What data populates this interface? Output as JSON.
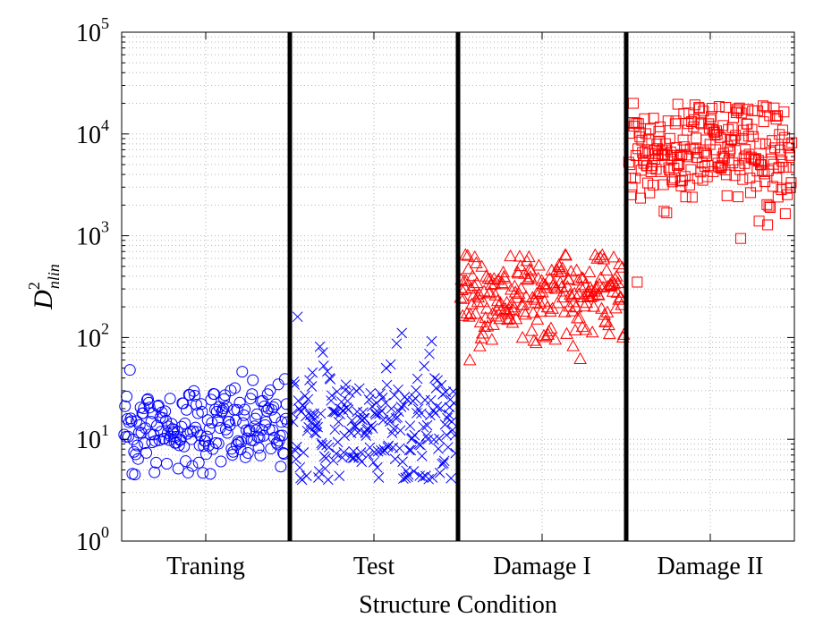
{
  "chart_data": {
    "type": "scatter",
    "title": "",
    "xlabel": "Structure Condition",
    "ylabel": "D²nlin",
    "ylabel_main": "D",
    "ylabel_sup": "2",
    "ylabel_sub": "nlin",
    "yscale": "log",
    "ylim": [
      1,
      100000
    ],
    "xlim": [
      0,
      4
    ],
    "y_ticks": [
      {
        "value": 1,
        "mantissa": "10",
        "exp": "0"
      },
      {
        "value": 10,
        "mantissa": "10",
        "exp": "1"
      },
      {
        "value": 100,
        "mantissa": "10",
        "exp": "2"
      },
      {
        "value": 1000,
        "mantissa": "10",
        "exp": "3"
      },
      {
        "value": 10000,
        "mantissa": "10",
        "exp": "4"
      },
      {
        "value": 100000,
        "mantissa": "10",
        "exp": "5"
      }
    ],
    "categories": [
      "Traning",
      "Test",
      "Damage I",
      "Damage II"
    ],
    "separators": [
      1,
      2,
      3
    ],
    "grid": true,
    "series": [
      {
        "category": "Traning",
        "marker": "circle",
        "color": "#0000ff",
        "count": 200,
        "median": 13,
        "min": 4.5,
        "max": 48,
        "log_spread": 0.22
      },
      {
        "category": "Test",
        "marker": "x",
        "color": "#0000ff",
        "count": 220,
        "median": 14,
        "min": 4,
        "max": 160,
        "log_spread": 0.3
      },
      {
        "category": "Damage I",
        "marker": "triangle",
        "color": "#ff0000",
        "count": 230,
        "median": 250,
        "min": 60,
        "max": 650,
        "log_spread": 0.2
      },
      {
        "category": "Damage II",
        "marker": "square",
        "color": "#ff0000",
        "count": 250,
        "median": 6500,
        "min": 350,
        "max": 20000,
        "log_spread": 0.28
      }
    ]
  }
}
